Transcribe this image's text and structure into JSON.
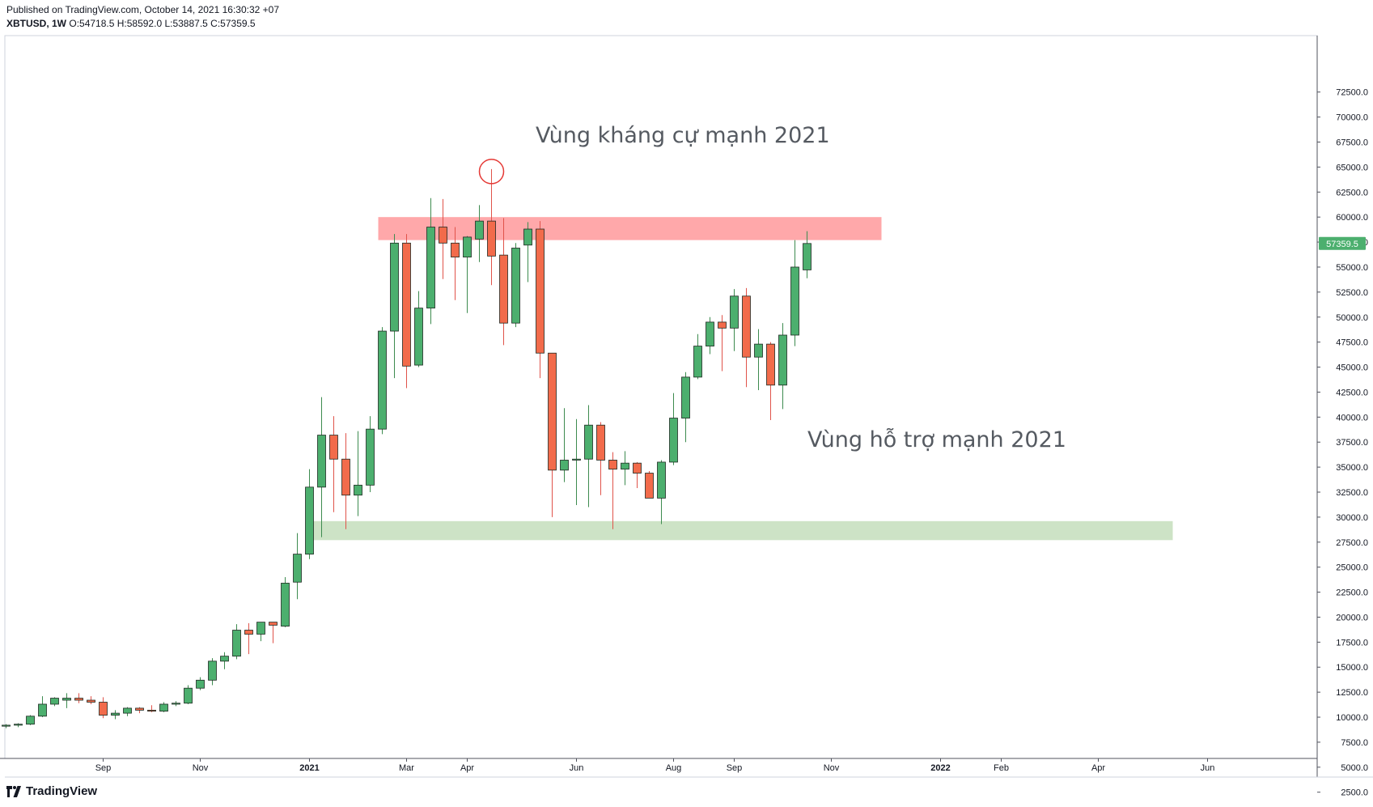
{
  "header": {
    "published": "Published on TradingView.com, October 14, 2021 16:30:32 +07",
    "symbol": "XBTUSD, 1W",
    "ohlc": "O:54718.5 H:58592.0 L:53887.5 C:57359.5"
  },
  "footer": {
    "brand": "TradingView"
  },
  "chart_data": {
    "type": "candlestick",
    "interval": "1W",
    "price_axis": {
      "min": 0,
      "max": 72500,
      "ticks": [
        "2500.0",
        "5000.0",
        "7500.0",
        "10000.0",
        "12500.0",
        "15000.0",
        "17500.0",
        "20000.0",
        "22500.0",
        "25000.0",
        "27500.0",
        "30000.0",
        "32500.0",
        "35000.0",
        "37500.0",
        "40000.0",
        "42500.0",
        "45000.0",
        "47500.0",
        "50000.0",
        "52500.0",
        "55000.0",
        "57500.0",
        "60000.0",
        "62500.0",
        "65000.0",
        "67500.0",
        "70000.0",
        "72500.0"
      ],
      "tick_values": [
        2500,
        5000,
        7500,
        10000,
        12500,
        15000,
        17500,
        20000,
        22500,
        25000,
        27500,
        30000,
        32500,
        35000,
        37500,
        40000,
        42500,
        45000,
        47500,
        50000,
        52500,
        55000,
        57500,
        60000,
        62500,
        65000,
        67500,
        70000,
        72500
      ]
    },
    "time_axis": {
      "labels": [
        "Sep",
        "Nov",
        "2021",
        "Mar",
        "Apr",
        "Jun",
        "Aug",
        "Sep",
        "Nov",
        "2022",
        "Feb",
        "Apr",
        "Jun"
      ],
      "label_bar_index": [
        8,
        16,
        25,
        33,
        38,
        47,
        55,
        60,
        68,
        77,
        82,
        90,
        99
      ],
      "bold": [
        "2021",
        "2022"
      ]
    },
    "last_price": "57359.5",
    "colors": {
      "up": "#26a69a",
      "up_fill": "#4caf6e",
      "down": "#ef5350",
      "down_fill": "#f26b4b",
      "resistance_zone": "#ff9ea1",
      "support_zone": "#c8e0c0",
      "last_price_badge": "#4caf6e",
      "marker": "#e53935"
    },
    "candles": [
      {
        "o": 9100,
        "h": 9300,
        "l": 8900,
        "c": 9200
      },
      {
        "o": 9200,
        "h": 9400,
        "l": 9000,
        "c": 9300
      },
      {
        "o": 9300,
        "h": 10200,
        "l": 9200,
        "c": 10100
      },
      {
        "o": 10100,
        "h": 12100,
        "l": 10000,
        "c": 11300
      },
      {
        "o": 11300,
        "h": 12000,
        "l": 11100,
        "c": 11900
      },
      {
        "o": 11700,
        "h": 12400,
        "l": 10900,
        "c": 11900
      },
      {
        "o": 11900,
        "h": 12400,
        "l": 11400,
        "c": 11700
      },
      {
        "o": 11700,
        "h": 12100,
        "l": 11300,
        "c": 11500
      },
      {
        "o": 11500,
        "h": 12000,
        "l": 9900,
        "c": 10200
      },
      {
        "o": 10200,
        "h": 10700,
        "l": 9800,
        "c": 10400
      },
      {
        "o": 10400,
        "h": 11000,
        "l": 10100,
        "c": 10900
      },
      {
        "o": 10900,
        "h": 11000,
        "l": 10400,
        "c": 10700
      },
      {
        "o": 10700,
        "h": 11200,
        "l": 10500,
        "c": 10600
      },
      {
        "o": 10600,
        "h": 11500,
        "l": 10500,
        "c": 11300
      },
      {
        "o": 11300,
        "h": 11600,
        "l": 11100,
        "c": 11400
      },
      {
        "o": 11400,
        "h": 13200,
        "l": 11300,
        "c": 12900
      },
      {
        "o": 12900,
        "h": 14000,
        "l": 12700,
        "c": 13700
      },
      {
        "o": 13700,
        "h": 15900,
        "l": 13200,
        "c": 15600
      },
      {
        "o": 15600,
        "h": 16500,
        "l": 14800,
        "c": 16100
      },
      {
        "o": 16100,
        "h": 19300,
        "l": 15800,
        "c": 18700
      },
      {
        "o": 18700,
        "h": 19400,
        "l": 16300,
        "c": 18300
      },
      {
        "o": 18300,
        "h": 19500,
        "l": 17600,
        "c": 19500
      },
      {
        "o": 19500,
        "h": 19500,
        "l": 17400,
        "c": 19200
      },
      {
        "o": 19100,
        "h": 24000,
        "l": 19000,
        "c": 23400
      },
      {
        "o": 23500,
        "h": 28400,
        "l": 21800,
        "c": 26300
      },
      {
        "o": 26300,
        "h": 34800,
        "l": 25800,
        "c": 33000
      },
      {
        "o": 33000,
        "h": 42000,
        "l": 28000,
        "c": 38200
      },
      {
        "o": 38200,
        "h": 40100,
        "l": 30500,
        "c": 35800
      },
      {
        "o": 35800,
        "h": 38400,
        "l": 28800,
        "c": 32200
      },
      {
        "o": 32200,
        "h": 38600,
        "l": 30100,
        "c": 33200
      },
      {
        "o": 33200,
        "h": 40100,
        "l": 32500,
        "c": 38800
      },
      {
        "o": 38800,
        "h": 49000,
        "l": 38300,
        "c": 48600
      },
      {
        "o": 48600,
        "h": 58300,
        "l": 43900,
        "c": 57400
      },
      {
        "o": 57400,
        "h": 58300,
        "l": 42900,
        "c": 45100
      },
      {
        "o": 45200,
        "h": 52600,
        "l": 45000,
        "c": 50900
      },
      {
        "o": 50900,
        "h": 61900,
        "l": 49300,
        "c": 59000
      },
      {
        "o": 59000,
        "h": 61800,
        "l": 53800,
        "c": 57400
      },
      {
        "o": 57400,
        "h": 59000,
        "l": 51700,
        "c": 56000
      },
      {
        "o": 56000,
        "h": 58100,
        "l": 50400,
        "c": 58000
      },
      {
        "o": 57800,
        "h": 61200,
        "l": 55500,
        "c": 59600
      },
      {
        "o": 59600,
        "h": 64800,
        "l": 53200,
        "c": 56100
      },
      {
        "o": 56200,
        "h": 59900,
        "l": 47200,
        "c": 49400
      },
      {
        "o": 49400,
        "h": 57400,
        "l": 49000,
        "c": 56900
      },
      {
        "o": 57200,
        "h": 59500,
        "l": 53500,
        "c": 58800
      },
      {
        "o": 58800,
        "h": 59600,
        "l": 43900,
        "c": 46400
      },
      {
        "o": 46400,
        "h": 46400,
        "l": 30000,
        "c": 34700
      },
      {
        "o": 34700,
        "h": 40900,
        "l": 33500,
        "c": 35700
      },
      {
        "o": 35700,
        "h": 39800,
        "l": 31200,
        "c": 35800
      },
      {
        "o": 35800,
        "h": 41200,
        "l": 31000,
        "c": 39200
      },
      {
        "o": 39200,
        "h": 39500,
        "l": 32200,
        "c": 35700
      },
      {
        "o": 35700,
        "h": 36500,
        "l": 28800,
        "c": 34800
      },
      {
        "o": 34800,
        "h": 36600,
        "l": 33200,
        "c": 35400
      },
      {
        "o": 35400,
        "h": 35500,
        "l": 32900,
        "c": 34400
      },
      {
        "o": 34400,
        "h": 34600,
        "l": 31900,
        "c": 31900
      },
      {
        "o": 31900,
        "h": 35700,
        "l": 29300,
        "c": 35500
      },
      {
        "o": 35500,
        "h": 42400,
        "l": 35200,
        "c": 39900
      },
      {
        "o": 39900,
        "h": 44500,
        "l": 37500,
        "c": 44000
      },
      {
        "o": 44000,
        "h": 48300,
        "l": 43800,
        "c": 47100
      },
      {
        "o": 47100,
        "h": 50000,
        "l": 46300,
        "c": 49500
      },
      {
        "o": 49500,
        "h": 50200,
        "l": 44600,
        "c": 48900
      },
      {
        "o": 48900,
        "h": 52800,
        "l": 46600,
        "c": 52100
      },
      {
        "o": 52100,
        "h": 52900,
        "l": 43000,
        "c": 46000
      },
      {
        "o": 46000,
        "h": 48800,
        "l": 42700,
        "c": 47300
      },
      {
        "o": 47300,
        "h": 47500,
        "l": 39700,
        "c": 43200
      },
      {
        "o": 43200,
        "h": 49400,
        "l": 40800,
        "c": 48200
      },
      {
        "o": 48200,
        "h": 57700,
        "l": 47100,
        "c": 55000
      },
      {
        "o": 54718.5,
        "h": 58592,
        "l": 53887.5,
        "c": 57359.5
      }
    ],
    "zones": [
      {
        "label": "Vùng kháng cự mạnh 2021",
        "top": 60000,
        "bottom": 57700,
        "from_bar": 31,
        "to_bar": 72
      },
      {
        "label": "Vùng hỗ trợ mạnh 2021",
        "top": 29600,
        "bottom": 27700,
        "from_bar": 25,
        "to_bar": 96
      }
    ],
    "marker": {
      "bar": 40,
      "price": 64800,
      "shape": "circle"
    }
  }
}
